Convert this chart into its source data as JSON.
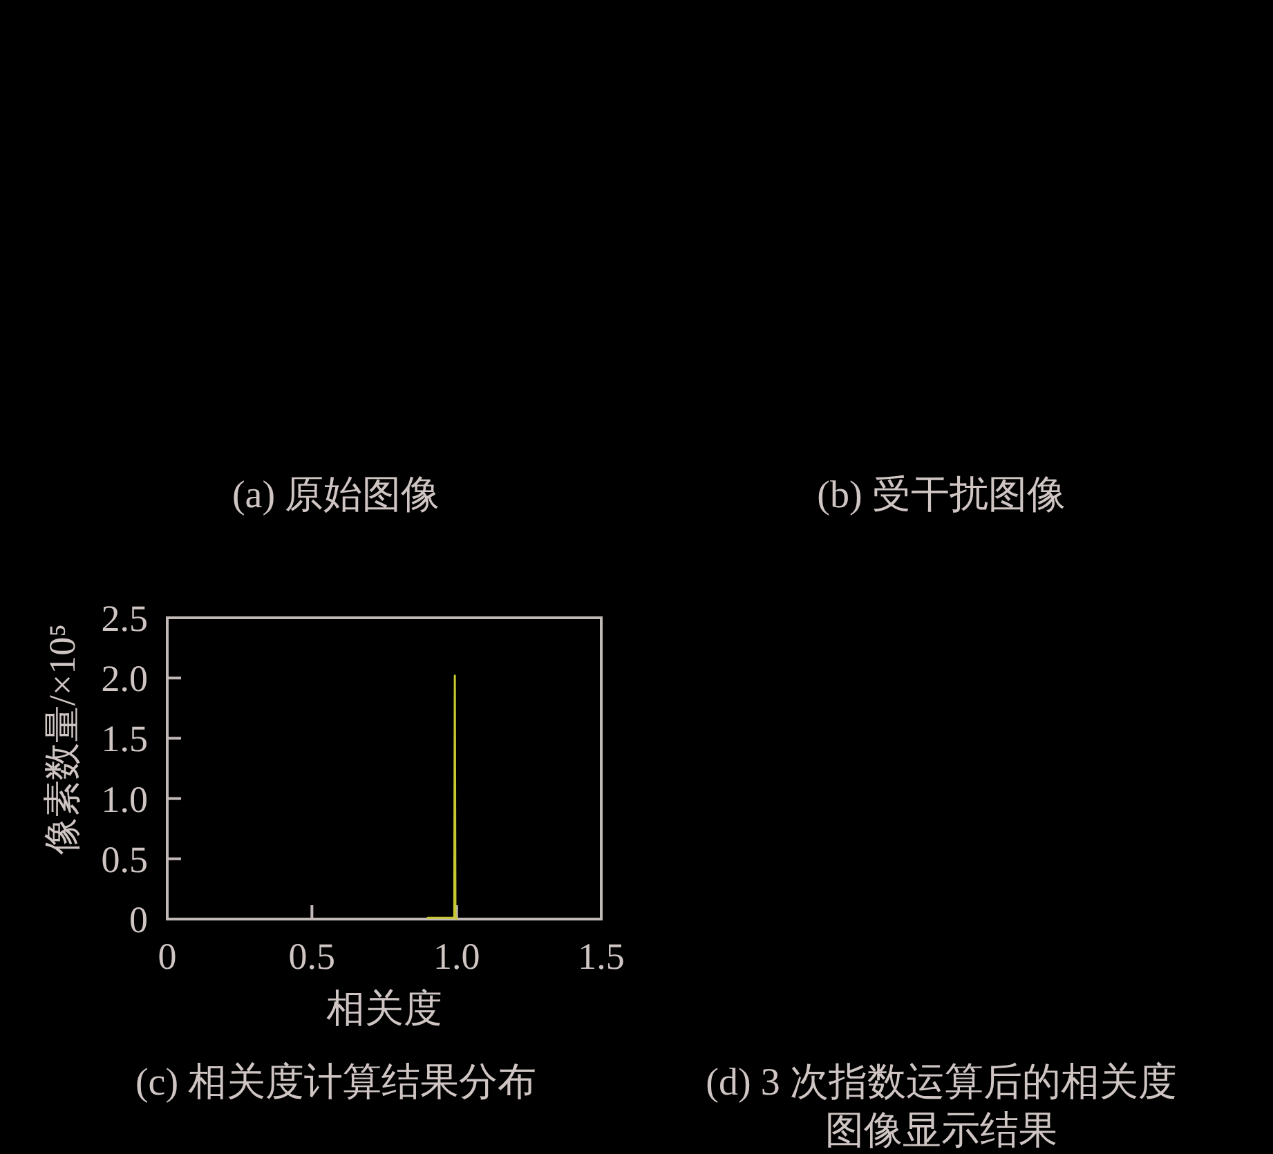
{
  "chart_data": {
    "type": "line",
    "xlabel": "相关度",
    "ylabel": "像素数量/×10⁵",
    "x": [
      0.9,
      0.99,
      0.992,
      0.994,
      0.996,
      1.0
    ],
    "series": [
      {
        "color": "#c8c832",
        "values": [
          0.01,
          0.01,
          0.02,
          2.02,
          0.02,
          0
        ]
      }
    ],
    "xlim": [
      0,
      1.5
    ],
    "xticks": [
      0,
      0.5,
      {
        "value": 1,
        "label": "1.0"
      },
      1.5
    ],
    "ylim": [
      0,
      2.5
    ],
    "yticks": [
      0,
      0.5,
      {
        "value": 1,
        "label": "1.0"
      },
      1.5,
      {
        "value": 2,
        "label": "2.0"
      },
      2.5
    ],
    "annotations": [
      "(a) 原始图像",
      "(b) 受干扰图像",
      "(c) 相关度计算结果分布",
      "(d) 3 次指数运算后的相关度图像显示结果"
    ]
  }
}
